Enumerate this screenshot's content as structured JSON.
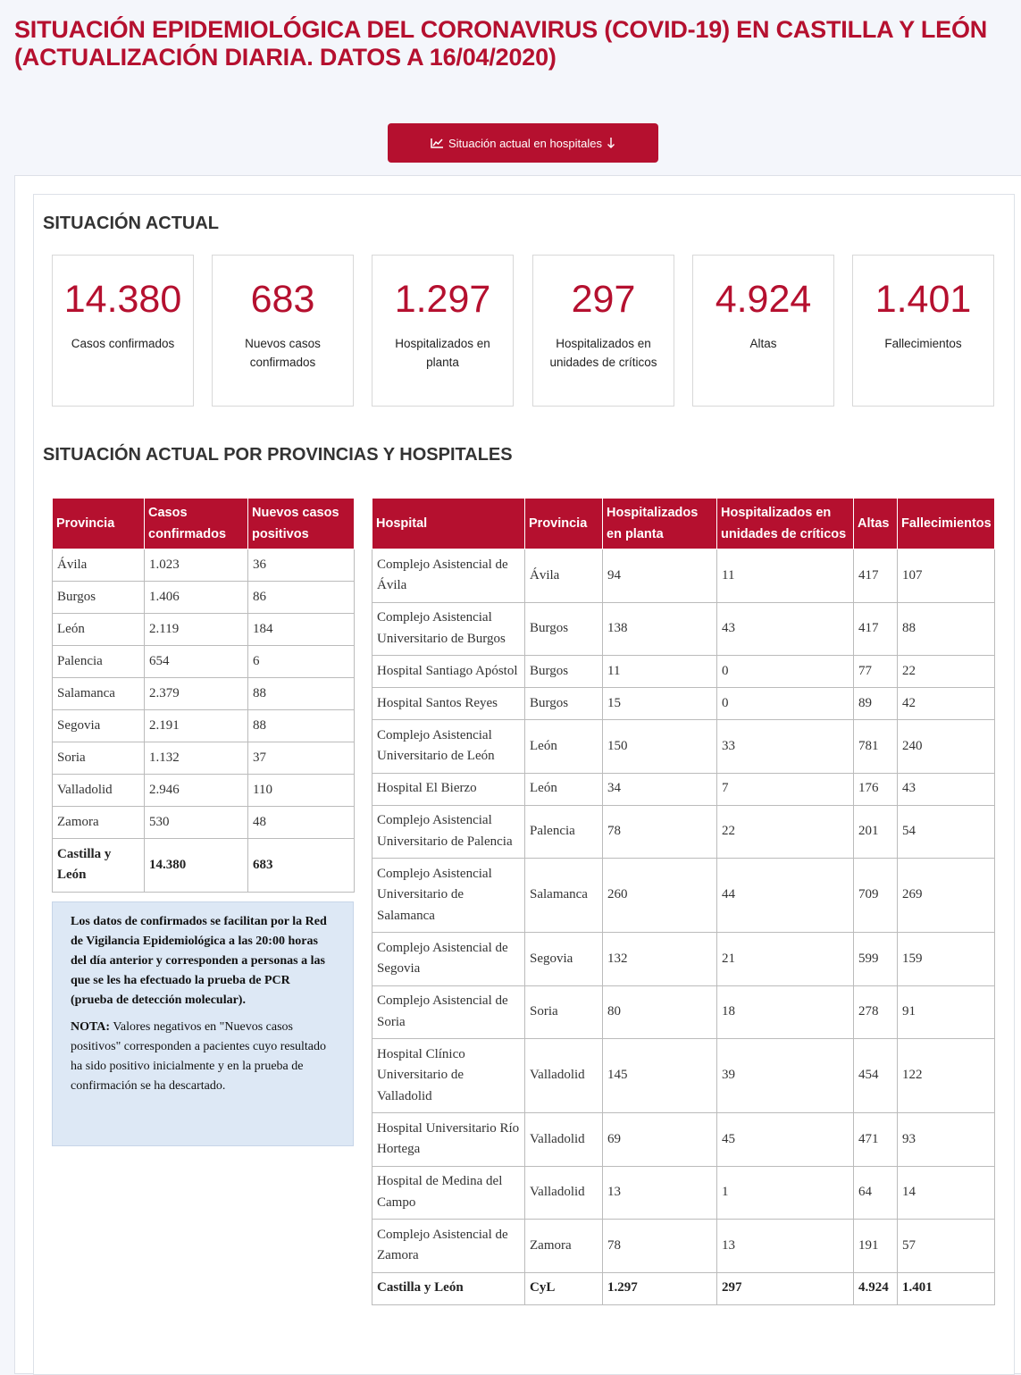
{
  "header": {
    "title": "SITUACIÓN EPIDEMIOLÓGICA DEL CORONAVIRUS (COVID-19) EN CASTILLA Y LEÓN (ACTUALIZACIÓN DIARIA. DATOS A 16/04/2020)"
  },
  "button": {
    "label": "Situación actual en hospitales"
  },
  "summary": {
    "title": "SITUACIÓN ACTUAL",
    "cards": [
      {
        "value": "14.380",
        "label": "Casos confirmados"
      },
      {
        "value": "683",
        "label": "Nuevos casos confirmados"
      },
      {
        "value": "1.297",
        "label": "Hospitalizados en planta"
      },
      {
        "value": "297",
        "label": "Hospitalizados en unidades de críticos"
      },
      {
        "value": "4.924",
        "label": "Altas"
      },
      {
        "value": "1.401",
        "label": "Fallecimientos"
      }
    ]
  },
  "section": {
    "title": "SITUACIÓN ACTUAL POR PROVINCIAS Y HOSPITALES"
  },
  "provinces": {
    "headers": [
      "Provincia",
      "Casos confirmados",
      "Nuevos casos positivos"
    ],
    "rows": [
      [
        "Ávila",
        "1.023",
        "36"
      ],
      [
        "Burgos",
        "1.406",
        "86"
      ],
      [
        "León",
        "2.119",
        "184"
      ],
      [
        "Palencia",
        "654",
        "6"
      ],
      [
        "Salamanca",
        "2.379",
        "88"
      ],
      [
        "Segovia",
        "2.191",
        "88"
      ],
      [
        "Soria",
        "1.132",
        "37"
      ],
      [
        "Valladolid",
        "2.946",
        "110"
      ],
      [
        "Zamora",
        "530",
        "48"
      ]
    ],
    "total": [
      "Castilla y León",
      "14.380",
      "683"
    ]
  },
  "note": {
    "paragraph": "Los datos de confirmados se facilitan por la Red de Vigilancia Epidemiológica a las 20:00 horas del día anterior y corresponden a personas a las que se les ha efectuado la prueba de PCR (prueba de detección molecular).",
    "nota_label": "NOTA:",
    "nota_text": "Valores negativos en \"Nuevos casos positivos\" corresponden a pacientes cuyo resultado ha sido positivo inicialmente y en la prueba de confirmación se ha descartado."
  },
  "hospitals": {
    "headers": [
      "Hospital",
      "Provincia",
      "Hospitalizados en planta",
      "Hospitalizados en unidades de críticos",
      "Altas",
      "Fallecimientos"
    ],
    "rows": [
      [
        "Complejo Asistencial de Ávila",
        "Ávila",
        "94",
        "11",
        "417",
        "107"
      ],
      [
        "Complejo Asistencial Universitario de Burgos",
        "Burgos",
        "138",
        "43",
        "417",
        "88"
      ],
      [
        "Hospital Santiago Apóstol",
        "Burgos",
        "11",
        "0",
        "77",
        "22"
      ],
      [
        "Hospital Santos Reyes",
        "Burgos",
        "15",
        "0",
        "89",
        "42"
      ],
      [
        "Complejo Asistencial Universitario de León",
        "León",
        "150",
        "33",
        "781",
        "240"
      ],
      [
        "Hospital El Bierzo",
        "León",
        "34",
        "7",
        "176",
        "43"
      ],
      [
        "Complejo Asistencial Universitario de Palencia",
        "Palencia",
        "78",
        "22",
        "201",
        "54"
      ],
      [
        "Complejo Asistencial Universitario de Salamanca",
        "Salamanca",
        "260",
        "44",
        "709",
        "269"
      ],
      [
        "Complejo Asistencial de Segovia",
        "Segovia",
        "132",
        "21",
        "599",
        "159"
      ],
      [
        "Complejo Asistencial de Soria",
        "Soria",
        "80",
        "18",
        "278",
        "91"
      ],
      [
        "Hospital Clínico Universitario de Valladolid",
        "Valladolid",
        "145",
        "39",
        "454",
        "122"
      ],
      [
        "Hospital Universitario Río Hortega",
        "Valladolid",
        "69",
        "45",
        "471",
        "93"
      ],
      [
        "Hospital de Medina del Campo",
        "Valladolid",
        "13",
        "1",
        "64",
        "14"
      ],
      [
        "Complejo Asistencial de Zamora",
        "Zamora",
        "78",
        "13",
        "191",
        "57"
      ]
    ],
    "total": [
      "Castilla y León",
      "CyL",
      "1.297",
      "297",
      "4.924",
      "1.401"
    ]
  }
}
